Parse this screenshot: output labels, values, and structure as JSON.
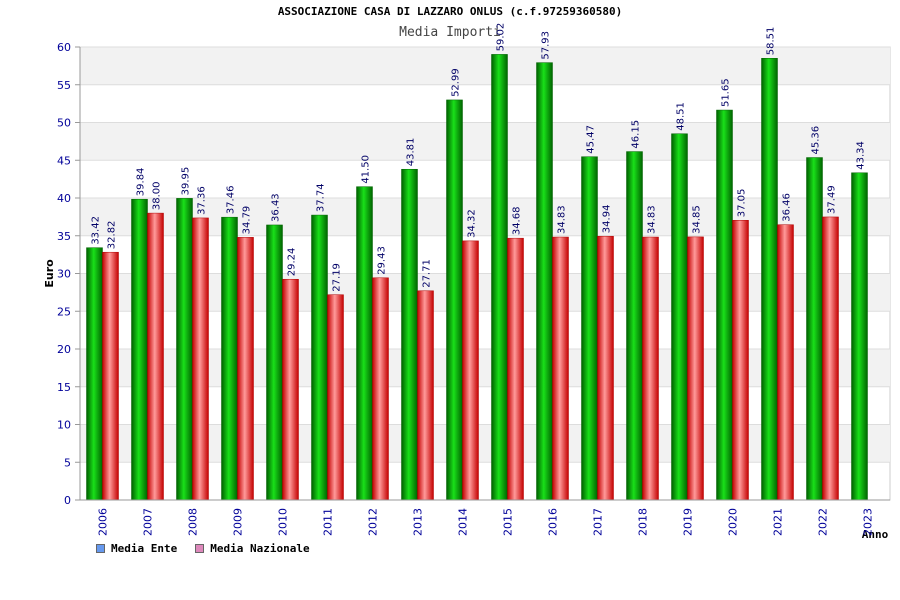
{
  "title": "ASSOCIAZIONE CASA DI LAZZARO ONLUS (c.f.97259360580)",
  "subtitle": "Media Importi",
  "chart_data": {
    "type": "bar",
    "categories": [
      "2006",
      "2007",
      "2008",
      "2009",
      "2010",
      "2011",
      "2012",
      "2013",
      "2014",
      "2015",
      "2016",
      "2017",
      "2018",
      "2019",
      "2020",
      "2021",
      "2022",
      "2023"
    ],
    "series": [
      {
        "name": "Media Ente",
        "color": "#00a000",
        "legend_color": "#6699ee",
        "values": [
          33.42,
          39.84,
          39.95,
          37.46,
          36.43,
          37.74,
          41.5,
          43.81,
          52.99,
          59.02,
          57.93,
          45.47,
          46.15,
          48.51,
          51.65,
          58.51,
          45.36,
          43.34
        ]
      },
      {
        "name": "Media Nazionale",
        "color": "#e02020",
        "legend_color": "#dd88bb",
        "values": [
          32.82,
          38.0,
          37.36,
          34.79,
          29.24,
          27.19,
          29.43,
          27.71,
          34.32,
          34.68,
          34.83,
          34.94,
          34.83,
          34.85,
          37.05,
          36.46,
          37.49,
          null
        ]
      }
    ],
    "value_labels": [
      [
        "33.42",
        "39.84",
        "39.95",
        "37.46",
        "36.43",
        "37.74",
        "41.50",
        "43.81",
        "52.99",
        "59.02",
        "57.93",
        "45.47",
        "46.15",
        "48.51",
        "51.65",
        "58.51",
        "45.36",
        "43.34"
      ],
      [
        "32.82",
        "38.00",
        "37.36",
        "34.79",
        "29.24",
        "27.19",
        "29.43",
        "27.71",
        "34.32",
        "34.68",
        "34.83",
        "34.94",
        "34.83",
        "34.85",
        "37.05",
        "36.46",
        "37.49",
        ""
      ]
    ],
    "xlabel": "Anno",
    "ylabel": "Euro",
    "ylim": [
      0,
      60
    ],
    "yticks": [
      0,
      5,
      10,
      15,
      20,
      25,
      30,
      35,
      40,
      45,
      50,
      55,
      60
    ],
    "grid": true,
    "legend_position": "bottom-left"
  }
}
